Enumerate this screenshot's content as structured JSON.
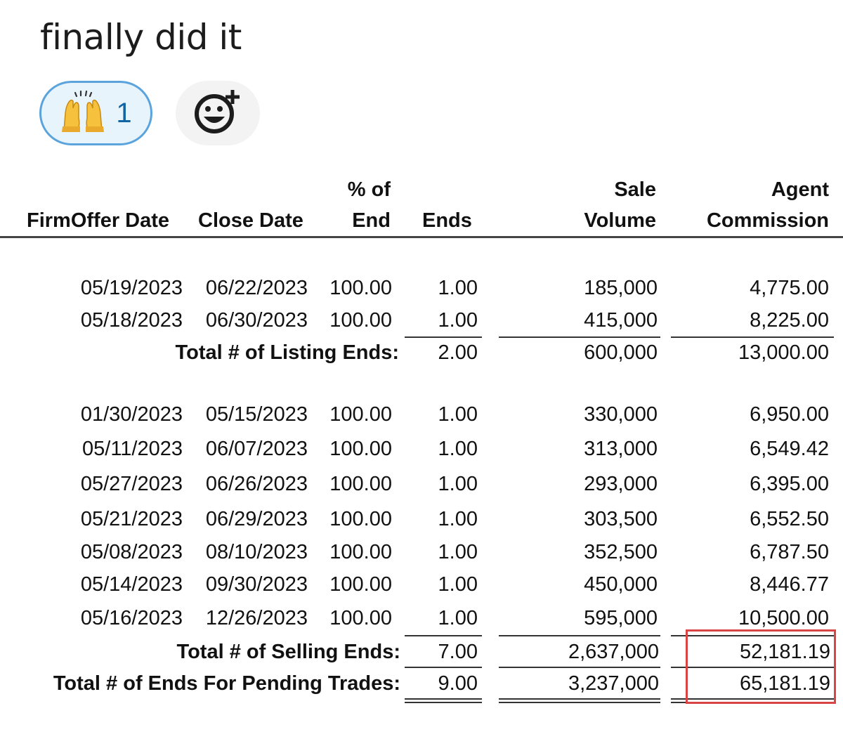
{
  "message": {
    "text": "finally did it"
  },
  "reactions": {
    "items": [
      {
        "emoji": "raised-hands-icon",
        "count": "1"
      }
    ],
    "add_reaction_icon": "add-reaction-icon"
  },
  "report": {
    "headers": {
      "firm_offer_date": "FirmOffer Date",
      "close_date": "Close Date",
      "pct_of_end_line1": "% of",
      "pct_of_end_line2": "End",
      "ends": "Ends",
      "sale_volume_line1": "Sale",
      "sale_volume_line2": "Volume",
      "agent_commission_line1": "Agent",
      "agent_commission_line2": "Commission"
    },
    "listing_rows": [
      {
        "firm_offer_date": "05/19/2023",
        "close_date": "06/22/2023",
        "pct": "100.00",
        "ends": "1.00",
        "volume": "185,000",
        "commission": "4,775.00"
      },
      {
        "firm_offer_date": "05/18/2023",
        "close_date": "06/30/2023",
        "pct": "100.00",
        "ends": "1.00",
        "volume": "415,000",
        "commission": "8,225.00"
      }
    ],
    "listing_total": {
      "label": "Total # of Listing Ends:",
      "ends": "2.00",
      "volume": "600,000",
      "commission": "13,000.00"
    },
    "selling_rows": [
      {
        "firm_offer_date": "01/30/2023",
        "close_date": "05/15/2023",
        "pct": "100.00",
        "ends": "1.00",
        "volume": "330,000",
        "commission": "6,950.00"
      },
      {
        "firm_offer_date": "05/11/2023",
        "close_date": "06/07/2023",
        "pct": "100.00",
        "ends": "1.00",
        "volume": "313,000",
        "commission": "6,549.42"
      },
      {
        "firm_offer_date": "05/27/2023",
        "close_date": "06/26/2023",
        "pct": "100.00",
        "ends": "1.00",
        "volume": "293,000",
        "commission": "6,395.00"
      },
      {
        "firm_offer_date": "05/21/2023",
        "close_date": "06/29/2023",
        "pct": "100.00",
        "ends": "1.00",
        "volume": "303,500",
        "commission": "6,552.50"
      },
      {
        "firm_offer_date": "05/08/2023",
        "close_date": "08/10/2023",
        "pct": "100.00",
        "ends": "1.00",
        "volume": "352,500",
        "commission": "6,787.50"
      },
      {
        "firm_offer_date": "05/14/2023",
        "close_date": "09/30/2023",
        "pct": "100.00",
        "ends": "1.00",
        "volume": "450,000",
        "commission": "8,446.77"
      },
      {
        "firm_offer_date": "05/16/2023",
        "close_date": "12/26/2023",
        "pct": "100.00",
        "ends": "1.00",
        "volume": "595,000",
        "commission": "10,500.00"
      }
    ],
    "selling_total": {
      "label": "Total # of Selling Ends:",
      "ends": "7.00",
      "volume": "2,637,000",
      "commission": "52,181.19"
    },
    "pending_total": {
      "label": "Total # of Ends For Pending Trades:",
      "ends": "9.00",
      "volume": "3,237,000",
      "commission": "65,181.19"
    },
    "highlight_color": "#d94545"
  }
}
